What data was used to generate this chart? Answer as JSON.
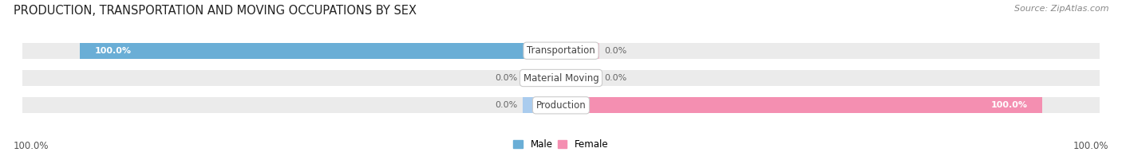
{
  "title": "PRODUCTION, TRANSPORTATION AND MOVING OCCUPATIONS BY SEX",
  "source": "Source: ZipAtlas.com",
  "categories": [
    "Transportation",
    "Material Moving",
    "Production"
  ],
  "male_values": [
    100.0,
    0.0,
    0.0
  ],
  "female_values": [
    0.0,
    0.0,
    100.0
  ],
  "male_color": "#6aaed6",
  "female_color": "#f48fb1",
  "male_stub_color": "#aaccee",
  "female_stub_color": "#f9bcd0",
  "bar_bg_color": "#ebebeb",
  "bar_border_color": "#d8d8d8",
  "title_fontsize": 10.5,
  "source_fontsize": 8,
  "tick_fontsize": 8.5,
  "label_fontsize": 8,
  "cat_fontsize": 8.5,
  "value_fontsize": 8
}
